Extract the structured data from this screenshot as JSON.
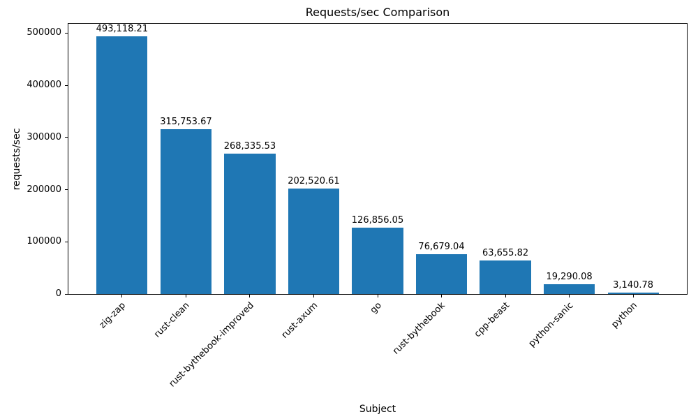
{
  "chart_data": {
    "type": "bar",
    "title": "Requests/sec Comparison",
    "xlabel": "Subject",
    "ylabel": "requests/sec",
    "categories": [
      "zig-zap",
      "rust-clean",
      "rust-bythebook-improved",
      "rust-axum",
      "go",
      "rust-bythebook",
      "cpp-beast",
      "python-sanic",
      "python"
    ],
    "values": [
      493118.21,
      315753.67,
      268335.53,
      202520.61,
      126856.05,
      76679.04,
      63655.82,
      19290.08,
      3140.78
    ],
    "value_labels": [
      "493,118.21",
      "315,753.67",
      "268,335.53",
      "202,520.61",
      "126,856.05",
      "76,679.04",
      "63,655.82",
      "19,290.08",
      "3,140.78"
    ],
    "bar_color": "#1f77b4",
    "ylim": [
      0,
      517774
    ],
    "yticks": [
      0,
      100000,
      200000,
      300000,
      400000,
      500000
    ],
    "bar_width_fraction": 0.8,
    "grid": false,
    "legend": false
  }
}
